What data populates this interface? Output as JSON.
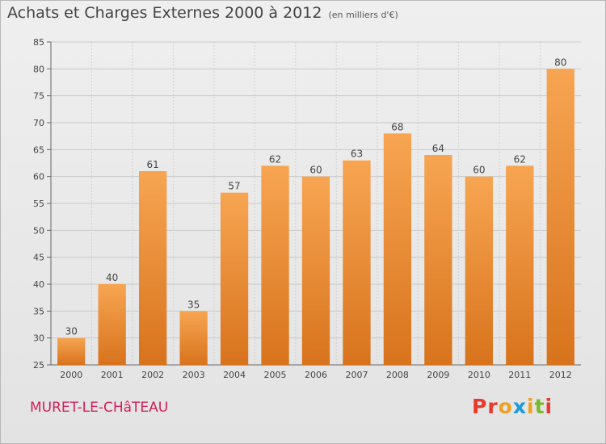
{
  "header": {
    "title": "Achats et Charges Externes 2000 à 2012",
    "unit": "(en milliers d'€)"
  },
  "footer": {
    "city": "MURET-LE-CHâTEAU",
    "brand": "Proxiti",
    "brand_colors": [
      "#e8392b",
      "#e8392b",
      "#f0a020",
      "#1b9bd7",
      "#f0a020",
      "#7ab929",
      "#e8392b"
    ]
  },
  "chart_data": {
    "type": "bar",
    "title": "Achats et Charges Externes 2000 à 2012",
    "subtitle": "(en milliers d'€)",
    "xlabel": "",
    "ylabel": "",
    "categories": [
      "2000",
      "2001",
      "2002",
      "2003",
      "2004",
      "2005",
      "2006",
      "2007",
      "2008",
      "2009",
      "2010",
      "2011",
      "2012"
    ],
    "values": [
      30,
      40,
      61,
      35,
      57,
      62,
      60,
      63,
      68,
      64,
      60,
      62,
      80
    ],
    "data_labels": [
      "30",
      "40",
      "61",
      "35",
      "57",
      "62",
      "60",
      "63",
      "68",
      "64",
      "60",
      "62",
      "80"
    ],
    "ylim": [
      25,
      85
    ],
    "yticks": [
      "25",
      "30",
      "35",
      "40",
      "45",
      "50",
      "55",
      "60",
      "65",
      "70",
      "75",
      "80",
      "85"
    ],
    "grid": true,
    "bar_color_top": "#f7a552",
    "bar_color_bottom": "#d8731c"
  }
}
